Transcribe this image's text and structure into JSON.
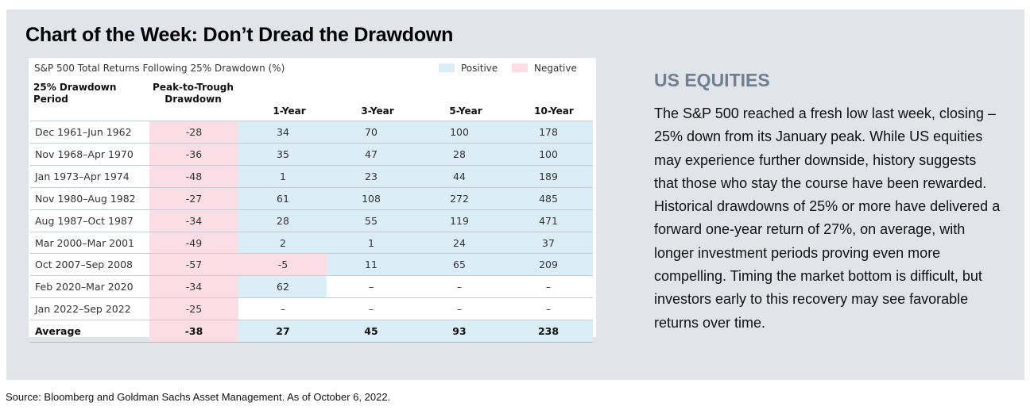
{
  "title": "Chart of the Week: Don’t Dread the Drawdown",
  "table": {
    "caption": "S&P 500 Total Returns Following 25% Drawdown (%)",
    "legend": {
      "positive": "Positive",
      "negative": "Negative"
    },
    "colors": {
      "positive": "#dbeef8",
      "negative": "#fbdde6",
      "panel": "#e1e4e8",
      "heading": "#6e8192"
    },
    "headers": {
      "period": [
        "25% Drawdown",
        "Period"
      ],
      "drawdown": [
        "Peak-to-Trough",
        "Drawdown"
      ],
      "y1": "1-Year",
      "y3": "3-Year",
      "y5": "5-Year",
      "y10": "10-Year"
    }
  },
  "chart_data": {
    "type": "table",
    "title": "S&P 500 Total Returns Following 25% Drawdown (%)",
    "columns": [
      "25% Drawdown Period",
      "Peak-to-Trough Drawdown",
      "1-Year",
      "3-Year",
      "5-Year",
      "10-Year"
    ],
    "rows": [
      [
        "Dec 1961–Jun 1962",
        "-28",
        "34",
        "70",
        "100",
        "178"
      ],
      [
        "Nov 1968–Apr 1970",
        "-36",
        "35",
        "47",
        "28",
        "100"
      ],
      [
        "Jan 1973–Apr 1974",
        "-48",
        "1",
        "23",
        "44",
        "189"
      ],
      [
        "Nov 1980–Aug 1982",
        "-27",
        "61",
        "108",
        "272",
        "485"
      ],
      [
        "Aug 1987–Oct 1987",
        "-34",
        "28",
        "55",
        "119",
        "471"
      ],
      [
        "Mar 2000–Mar 2001",
        "-49",
        "2",
        "1",
        "24",
        "37"
      ],
      [
        "Oct 2007–Sep 2008",
        "-57",
        "-5",
        "11",
        "65",
        "209"
      ],
      [
        "Feb 2020–Mar 2020",
        "-34",
        "62",
        "–",
        "–",
        "–"
      ],
      [
        "Jan 2022–Sep 2022",
        "-25",
        "–",
        "–",
        "–",
        "–"
      ]
    ],
    "average": [
      "Average",
      "-38",
      "27",
      "45",
      "93",
      "238"
    ]
  },
  "sidebar": {
    "heading": "US EQUITIES",
    "body": "The S&P 500 reached a fresh low last week, closing –25% down from its January peak. While US equities may experience further downside, history suggests that those who stay the course have been rewarded. Historical drawdowns of 25% or more have delivered a forward one-year return of 27%, on average, with longer investment periods proving even more compelling. Timing the market bottom is difficult, but investors early to this recovery may see favorable returns over time."
  },
  "source": "Source: Bloomberg and Goldman Sachs Asset Management. As of October 6, 2022."
}
